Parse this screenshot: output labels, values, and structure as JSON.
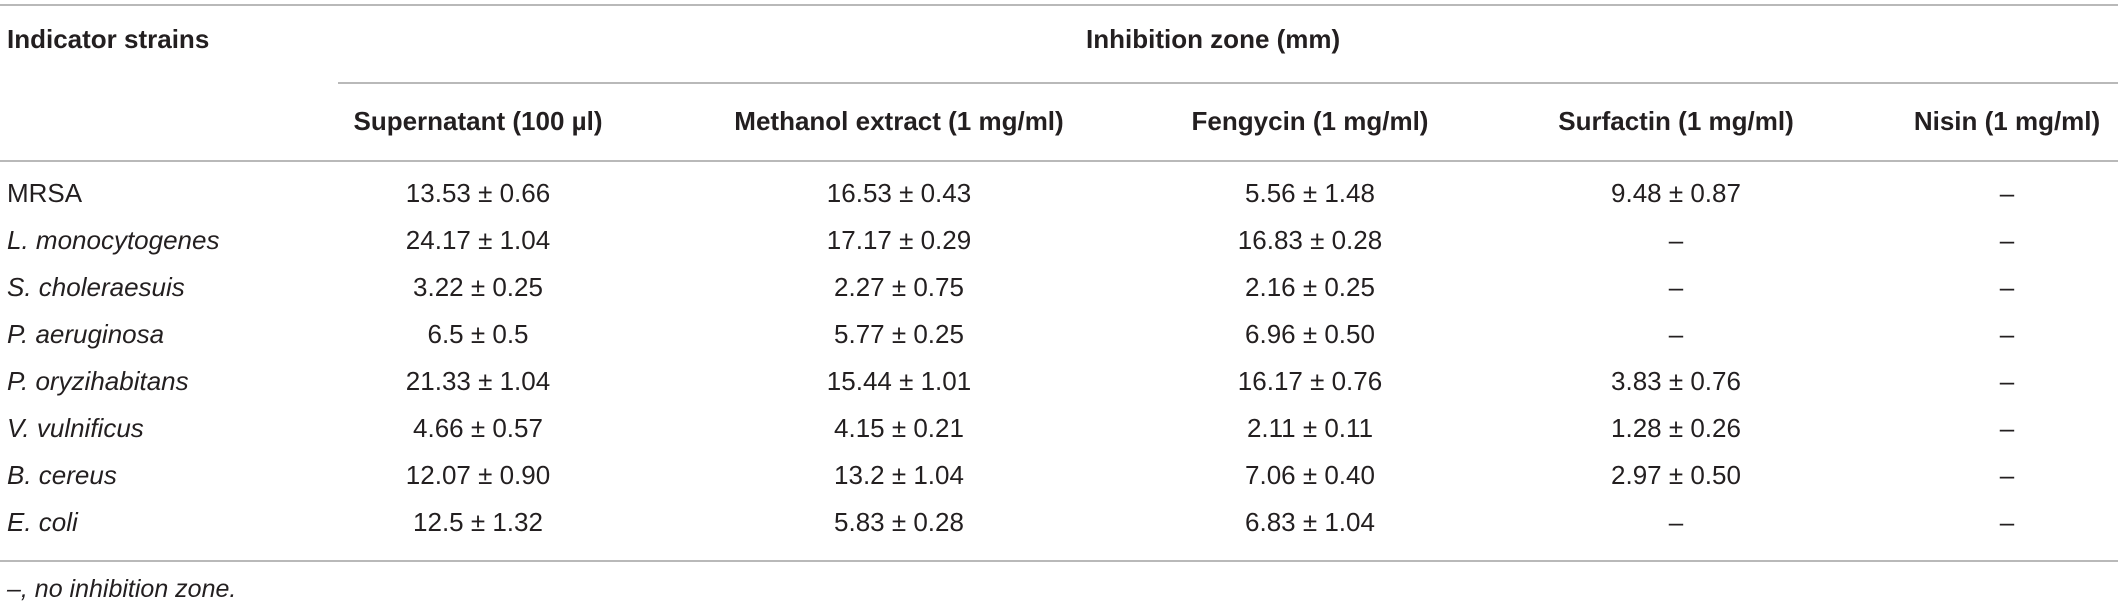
{
  "table": {
    "header_row_label": "Indicator strains",
    "spanning_header": "Inhibition zone (mm)",
    "columns": [
      "Supernatant (100 µl)",
      "Methanol extract (1 mg/ml)",
      "Fengycin (1 mg/ml)",
      "Surfactin (1 mg/ml)",
      "Nisin (1 mg/ml)"
    ],
    "rows": [
      {
        "strain": "MRSA",
        "italic": false,
        "values": [
          "13.53 ± 0.66",
          "16.53 ± 0.43",
          "5.56 ± 1.48",
          "9.48 ± 0.87",
          "–"
        ]
      },
      {
        "strain": "L. monocytogenes",
        "italic": true,
        "values": [
          "24.17 ± 1.04",
          "17.17 ± 0.29",
          "16.83 ± 0.28",
          "–",
          "–"
        ]
      },
      {
        "strain": "S. choleraesuis",
        "italic": true,
        "values": [
          "3.22 ± 0.25",
          "2.27 ± 0.75",
          "2.16 ± 0.25",
          "–",
          "–"
        ]
      },
      {
        "strain": "P. aeruginosa",
        "italic": true,
        "values": [
          "6.5 ± 0.5",
          "5.77 ± 0.25",
          "6.96 ± 0.50",
          "–",
          "–"
        ]
      },
      {
        "strain": "P. oryzihabitans",
        "italic": true,
        "values": [
          "21.33 ± 1.04",
          "15.44 ± 1.01",
          "16.17 ± 0.76",
          "3.83 ± 0.76",
          "–"
        ]
      },
      {
        "strain": "V. vulnificus",
        "italic": true,
        "values": [
          "4.66 ± 0.57",
          "4.15 ± 0.21",
          "2.11 ± 0.11",
          "1.28 ± 0.26",
          "–"
        ]
      },
      {
        "strain": "B. cereus",
        "italic": true,
        "values": [
          "12.07 ± 0.90",
          "13.2 ± 1.04",
          "7.06 ± 0.40",
          "2.97 ± 0.50",
          "–"
        ]
      },
      {
        "strain": "E. coli",
        "italic": true,
        "values": [
          "12.5 ± 1.32",
          "5.83 ± 0.28",
          "6.83 ± 1.04",
          "–",
          "–"
        ]
      }
    ],
    "footnote": "–, no inhibition zone."
  }
}
